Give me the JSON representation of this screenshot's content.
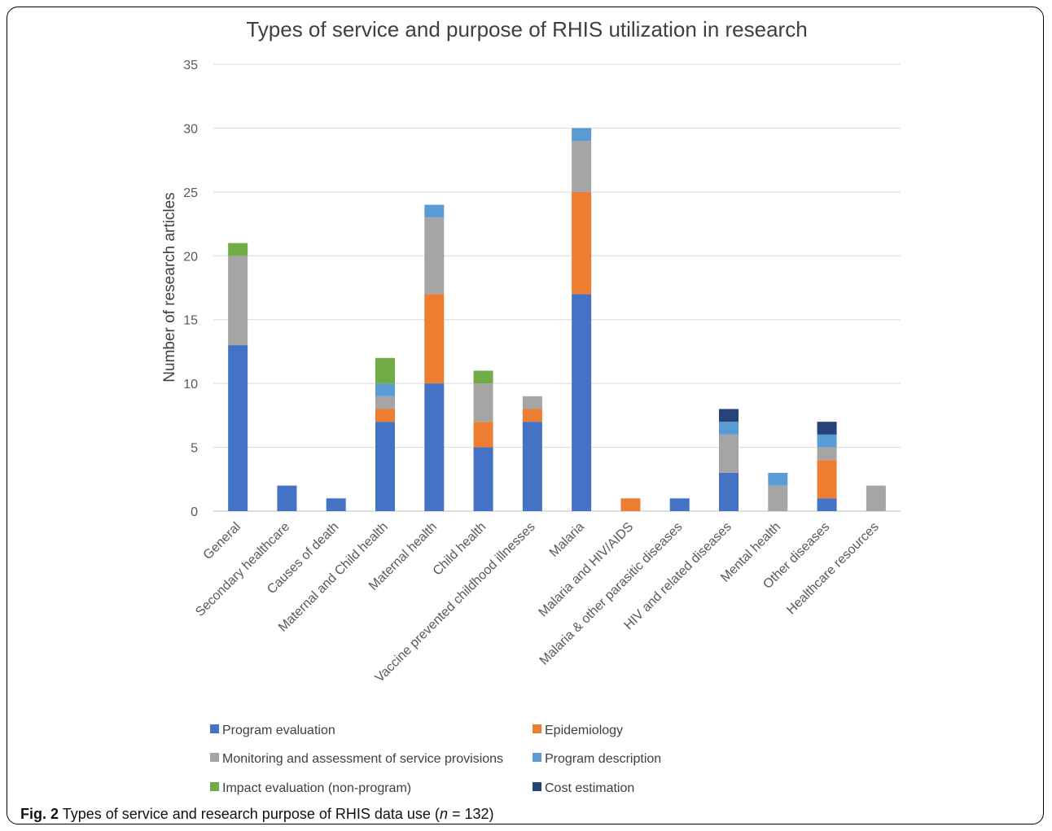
{
  "chart_data": {
    "type": "bar",
    "stacked": true,
    "title": "Types of service and purpose of RHIS utilization in research",
    "xlabel": "",
    "ylabel": "Number of research articles",
    "ylim": [
      0,
      35
    ],
    "yticks": [
      0,
      5,
      10,
      15,
      20,
      25,
      30,
      35
    ],
    "grid": true,
    "legend_position": "bottom",
    "categories": [
      "General",
      "Secondary healthcare",
      "Causes of death",
      "Maternal and Child health",
      "Maternal health",
      "Child health",
      "Vaccine prevented childhood illnesses",
      "Malaria",
      "Malaria and HIV/AIDS",
      "Malaria & other parasitic diseases",
      "HIV and related diseases",
      "Mental health",
      "Other diseases",
      "Healthcare resources"
    ],
    "series": [
      {
        "name": "Program evaluation",
        "color": "#4472c4",
        "values": [
          13,
          2,
          1,
          7,
          10,
          5,
          7,
          17,
          0,
          1,
          3,
          0,
          1,
          0
        ]
      },
      {
        "name": "Epidemiology",
        "color": "#ed7d31",
        "values": [
          0,
          0,
          0,
          1,
          7,
          2,
          1,
          8,
          1,
          0,
          0,
          0,
          3,
          0
        ]
      },
      {
        "name": "Monitoring and assessment of service provisions",
        "color": "#a5a5a5",
        "values": [
          7,
          0,
          0,
          1,
          6,
          3,
          1,
          4,
          0,
          0,
          3,
          2,
          1,
          2
        ]
      },
      {
        "name": "Program description",
        "color": "#5b9bd5",
        "values": [
          0,
          0,
          0,
          1,
          1,
          0,
          0,
          1,
          0,
          0,
          1,
          1,
          1,
          0
        ]
      },
      {
        "name": "Impact evaluation (non-program)",
        "color": "#70ad47",
        "values": [
          1,
          0,
          0,
          2,
          0,
          1,
          0,
          0,
          0,
          0,
          0,
          0,
          0,
          0
        ]
      },
      {
        "name": "Cost estimation",
        "color": "#264478",
        "values": [
          0,
          0,
          0,
          0,
          0,
          0,
          0,
          0,
          0,
          0,
          1,
          0,
          1,
          0
        ]
      }
    ]
  },
  "caption": {
    "fig_label": "Fig. 2",
    "text_before": " Types of service and research purpose of RHIS data use (",
    "n_symbol": "n",
    "text_after": " = 132)"
  }
}
